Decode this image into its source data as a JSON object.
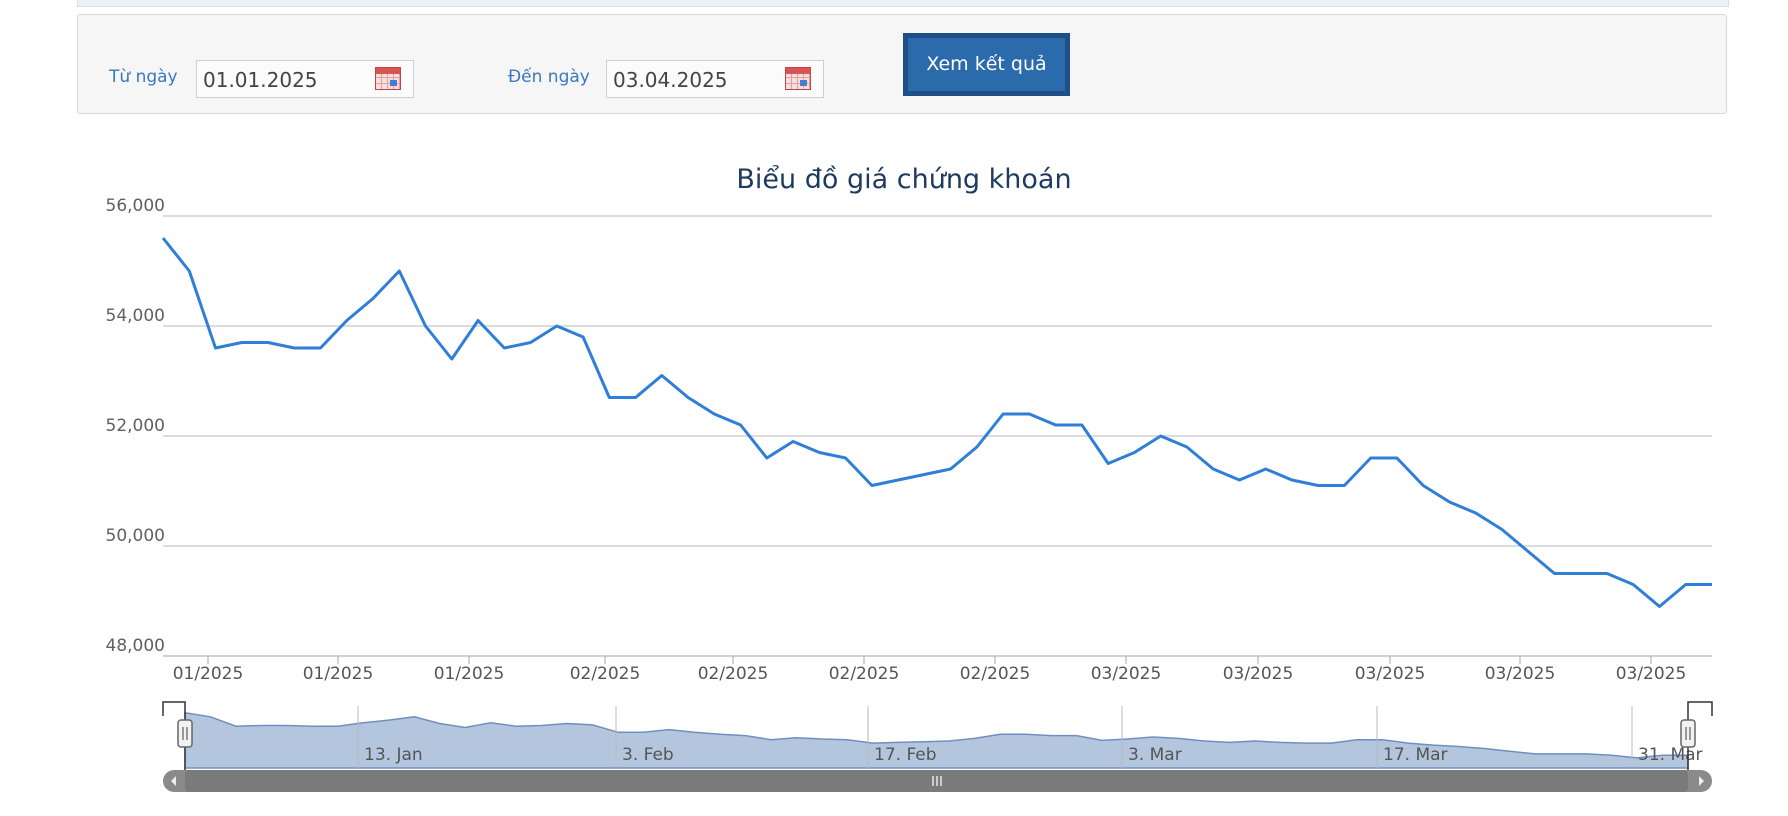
{
  "filter": {
    "from_label": "Từ ngày",
    "from_value": "01.01.2025",
    "to_label": "Đến ngày",
    "to_value": "03.04.2025",
    "submit_label": "Xem kết quả"
  },
  "colors": {
    "line": "#2f7ed8",
    "navigator_fill": "#b4c6de",
    "accent": "#2b6aab"
  },
  "chart_data": {
    "type": "line",
    "title": "Biểu đồ giá chứng khoán",
    "y_ticks": [
      "56,000",
      "54,000",
      "52,000",
      "50,000",
      "48,000"
    ],
    "ylim": [
      48000,
      56000
    ],
    "x_tick_labels": [
      "01/2025",
      "01/2025",
      "01/2025",
      "02/2025",
      "02/2025",
      "02/2025",
      "02/2025",
      "03/2025",
      "03/2025",
      "03/2025",
      "03/2025",
      "03/2025"
    ],
    "grid": true,
    "series": [
      {
        "values": [
          55600,
          55000,
          53600,
          53700,
          53700,
          53600,
          53600,
          54100,
          54500,
          55000,
          54000,
          53400,
          54100,
          53600,
          53700,
          54000,
          53800,
          52700,
          52700,
          53100,
          52700,
          52400,
          52200,
          51600,
          51900,
          51700,
          51600,
          51100,
          51200,
          51300,
          51400,
          51800,
          52400,
          52400,
          52200,
          52200,
          51500,
          51700,
          52000,
          51800,
          51400,
          51200,
          51400,
          51200,
          51100,
          51100,
          51600,
          51600,
          51100,
          50800,
          50600,
          50300,
          49900,
          49500,
          49500,
          49500,
          49300,
          48900,
          49300,
          49300
        ]
      }
    ],
    "navigator": {
      "labels": [
        "13. Jan",
        "3. Feb",
        "17. Feb",
        "3. Mar",
        "17. Mar",
        "31. Mar"
      ]
    }
  }
}
